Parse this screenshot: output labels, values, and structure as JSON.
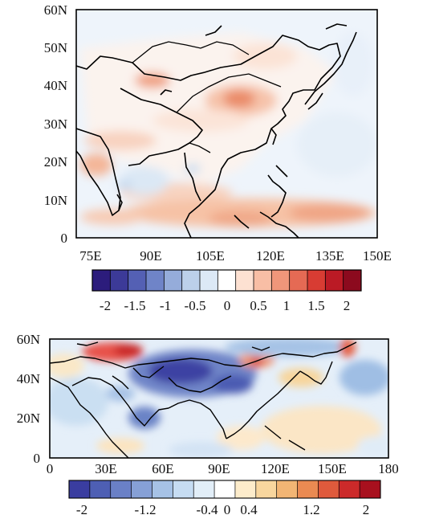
{
  "top_map": {
    "lat_labels": [
      "60N",
      "50N",
      "40N",
      "30N",
      "20N",
      "10N",
      "0"
    ],
    "lon_labels": [
      "75E",
      "90E",
      "105E",
      "120E",
      "135E",
      "150E"
    ],
    "colorbar": {
      "colors": [
        "#2c1c7c",
        "#3c3a98",
        "#5460b4",
        "#6f84c8",
        "#95acda",
        "#bcd0ea",
        "#dce9f6",
        "#ffffff",
        "#fde1d2",
        "#f8bea5",
        "#f0967a",
        "#e56a54",
        "#d83c33",
        "#bb1a25",
        "#8c0a1e"
      ],
      "labels": [
        "-2",
        "-1.5",
        "-1",
        "-0.5",
        "0",
        "0.5",
        "1",
        "1.5",
        "2"
      ]
    }
  },
  "bottom_map": {
    "lat_labels": [
      "60N",
      "40N",
      "20N",
      "0"
    ],
    "lon_labels": [
      "0",
      "30E",
      "60E",
      "90E",
      "120E",
      "150E",
      "180"
    ],
    "colorbar": {
      "colors": [
        "#3a3da0",
        "#4e5fb4",
        "#6a80c6",
        "#86a0d6",
        "#a6c2e6",
        "#c6dcf2",
        "#e2eef8",
        "#ffffff",
        "#fdeccb",
        "#f8d69e",
        "#f2b574",
        "#ea8a52",
        "#df5a3c",
        "#cc2a2a",
        "#a8101e"
      ],
      "labels": [
        "-2",
        "-1.2",
        "-0.4",
        "0",
        "0.4",
        "1.2",
        "2"
      ]
    }
  }
}
